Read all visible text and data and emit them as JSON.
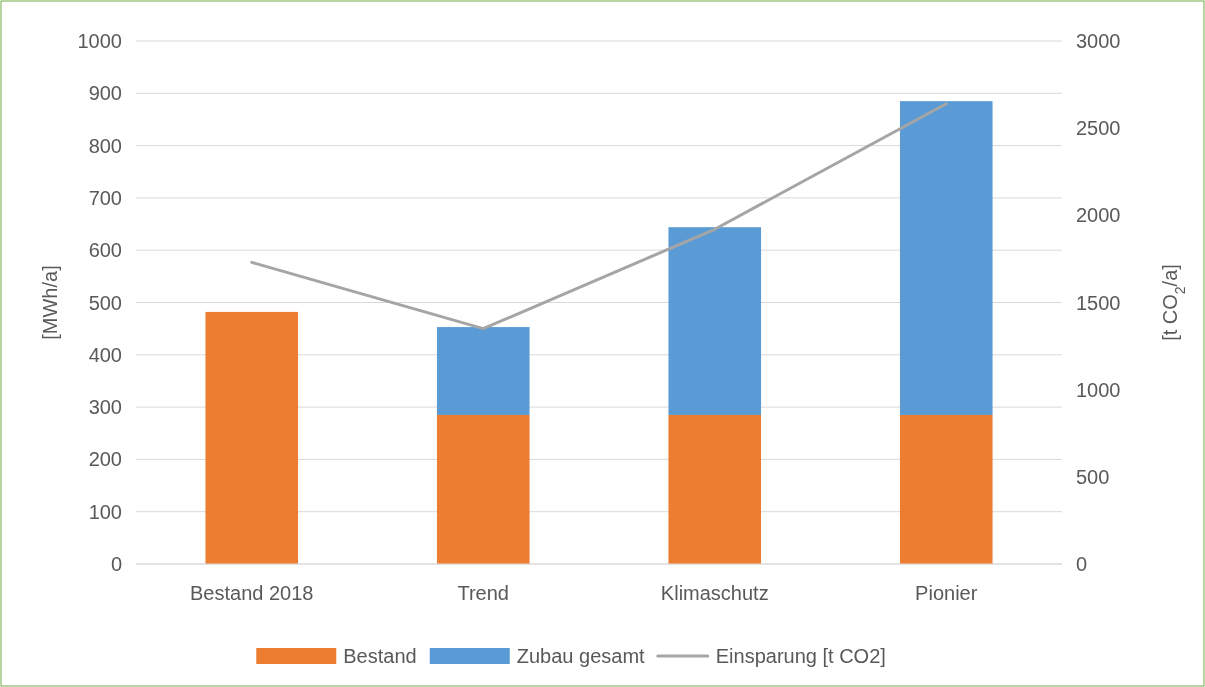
{
  "chart_data": {
    "type": "bar",
    "stacked": true,
    "categories": [
      "Bestand 2018",
      "Trend",
      "Klimaschutz",
      "Pionier"
    ],
    "series": [
      {
        "name": "Bestand",
        "color": "#ed7d31",
        "values": [
          482,
          285,
          285,
          285
        ]
      },
      {
        "name": "Zubau gesamt",
        "color": "#5b9bd5",
        "values": [
          0,
          168,
          359,
          600
        ]
      },
      {
        "name": "Einsparung [t CO2]",
        "type": "line",
        "axis": "y2",
        "color": "#a5a5a5",
        "values": [
          1730,
          1350,
          1920,
          2640
        ]
      }
    ],
    "ylabel": "[MWh/a]",
    "y2label": "[t CO$_{2}$/a]",
    "ylim": [
      0,
      1000
    ],
    "yticks": [
      0,
      100,
      200,
      300,
      400,
      500,
      600,
      700,
      800,
      900,
      1000
    ],
    "y2lim": [
      0,
      3000
    ],
    "y2ticks": [
      0,
      500,
      1000,
      1500,
      2000,
      2500,
      3000
    ],
    "grid": "y",
    "legend": "bottom"
  }
}
